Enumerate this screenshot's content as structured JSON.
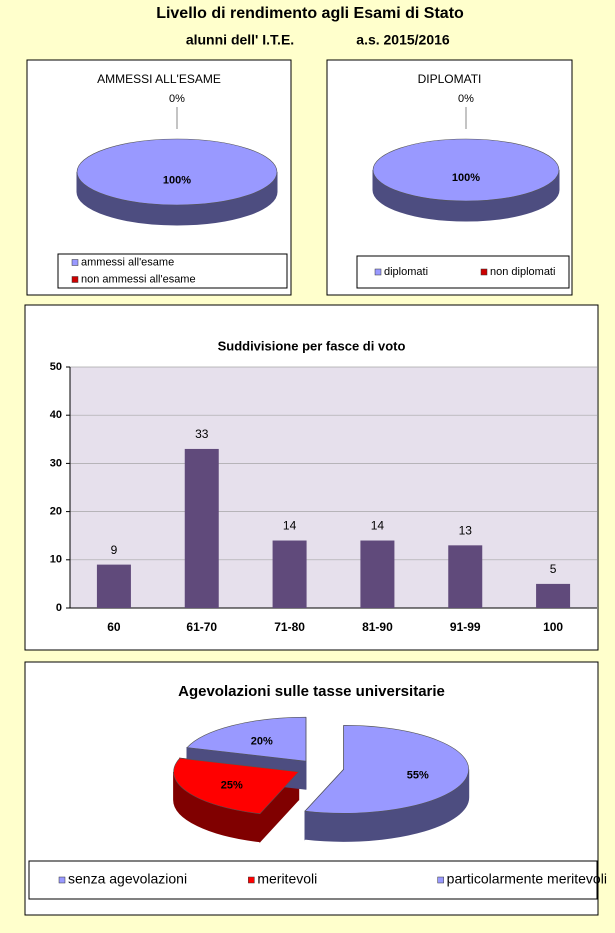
{
  "header": {
    "title": "Livello di rendimento agli Esami di Stato",
    "subtitles": [
      "alunni dell' I.T.E.",
      "a.s. 2015/2016"
    ]
  },
  "chart_data": [
    {
      "type": "pie",
      "title": "AMMESSI ALL'ESAME",
      "categories": [
        "ammessi all'esame",
        "non ammessi all'esame"
      ],
      "values": [
        100,
        0
      ],
      "value_labels": [
        "100%",
        "0%"
      ],
      "colors": [
        "#9999ff",
        "#cc0000"
      ]
    },
    {
      "type": "pie",
      "title": "DIPLOMATI",
      "categories": [
        "diplomati",
        "non diplomati"
      ],
      "values": [
        100,
        0
      ],
      "value_labels": [
        "100%",
        "0%"
      ],
      "colors": [
        "#9999ff",
        "#cc0000"
      ]
    },
    {
      "type": "bar",
      "title": "Suddivisione per fasce di voto",
      "categories": [
        "60",
        "61-70",
        "71-80",
        "81-90",
        "91-99",
        "100"
      ],
      "values": [
        9,
        33,
        14,
        14,
        13,
        5
      ],
      "color": "#604a7b",
      "ylim": [
        0,
        50
      ],
      "yticks": [
        0,
        10,
        20,
        30,
        40,
        50
      ],
      "grid": true
    },
    {
      "type": "pie",
      "title": "Agevolazioni sulle tasse universitarie",
      "categories": [
        "senza agevolazioni",
        "meritevoli",
        "particolarmente meritevoli"
      ],
      "values": [
        55,
        25,
        20
      ],
      "value_labels": [
        "55%",
        "25%",
        "20%"
      ],
      "colors": [
        "#9999ff",
        "#ff0000",
        "#9999ff"
      ],
      "exploded": true
    }
  ]
}
